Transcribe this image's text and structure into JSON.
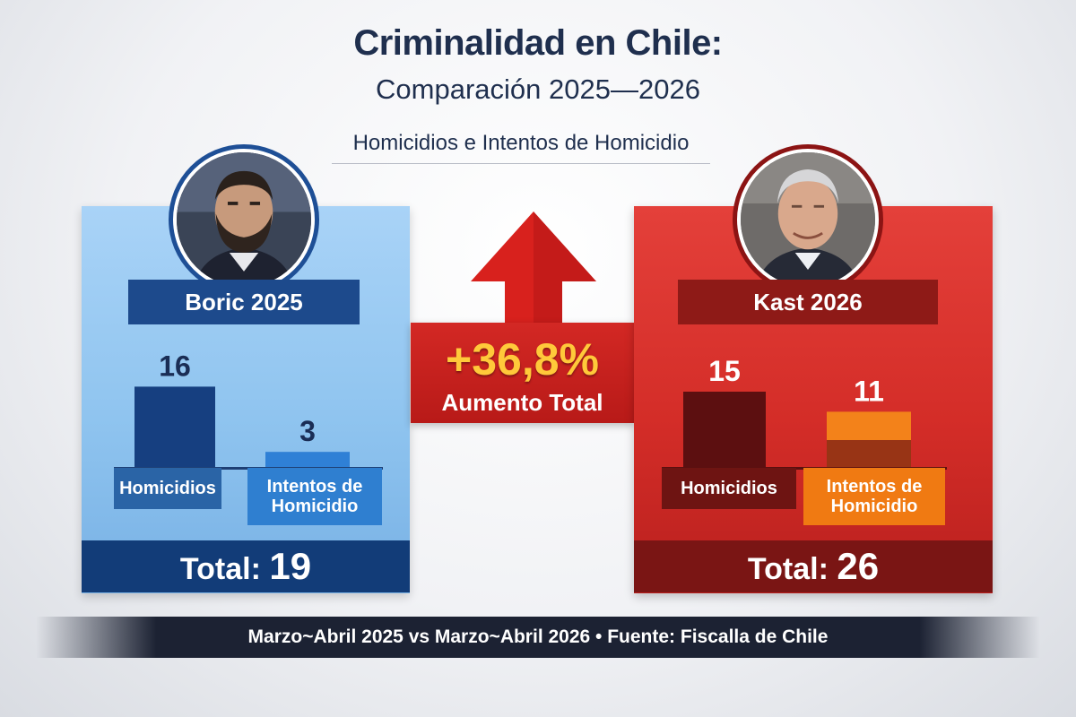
{
  "header": {
    "title": "Criminalidad en Chile:",
    "subtitle": "Comparación 2025—2026",
    "section": "Homicidios e Intentos de Homicidio"
  },
  "comparison": {
    "change": "+36,8%",
    "change_label": "Aumento Total"
  },
  "footer": "Marzo~Abril 2025 vs Marzo~Abril 2026 • Fuente: Fiscalla de Chile",
  "colors": {
    "blue_panel": "#8fc4ef",
    "blue_dark": "#123c78",
    "red_panel": "#d42d28",
    "red_dark": "#7a1514",
    "orange": "#f3821a",
    "accent_yellow": "#ffc93a"
  },
  "chart_data": [
    {
      "type": "bar",
      "title": "Boric 2025",
      "categories": [
        "Homicidios",
        "Intentos de\nHomicidio"
      ],
      "values": [
        16,
        3
      ],
      "value_labels": [
        "16",
        "3"
      ],
      "total_label": "Total:",
      "total": "19"
    },
    {
      "type": "bar",
      "title": "Kast 2026",
      "categories": [
        "Homicidios",
        "Intentos de\nHomicidio"
      ],
      "values": [
        15,
        11
      ],
      "value_labels": [
        "15",
        "11"
      ],
      "total_label": "Total:",
      "total": "26"
    }
  ]
}
